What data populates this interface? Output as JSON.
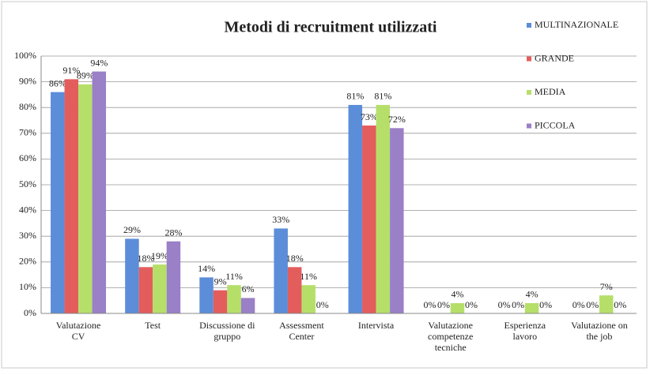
{
  "chart_data": {
    "type": "bar",
    "title": "Metodi di recruitment utilizzati",
    "categories": [
      "Valutazione\nCV",
      "Test",
      "Discussione di\ngruppo",
      "Assessment\nCenter",
      "Intervista",
      "Valutazione\ncompetenze\ntecniche",
      "Esperienza\nlavoro",
      "Valutazione on\nthe job"
    ],
    "series": [
      {
        "name": "MULTINAZIONALE",
        "color": "#5b8dd9",
        "values": [
          86,
          29,
          14,
          33,
          81,
          0,
          0,
          0
        ],
        "value_labels": [
          "86%",
          "29%",
          "14%",
          "33%",
          "81%",
          "0%",
          "0%",
          "0%"
        ]
      },
      {
        "name": "GRANDE",
        "color": "#e35d5d",
        "values": [
          91,
          18,
          9,
          18,
          73,
          0,
          0,
          0
        ],
        "value_labels": [
          "91%",
          "18%",
          "9%",
          "18%",
          "73%",
          "0%",
          "0%",
          "0%"
        ]
      },
      {
        "name": "MEDIA",
        "color": "#b6df6a",
        "values": [
          89,
          19,
          11,
          11,
          81,
          4,
          4,
          7
        ],
        "value_labels": [
          "89%",
          "19%",
          "11%",
          "11%",
          "81%",
          "4%",
          "4%",
          "7%"
        ]
      },
      {
        "name": "PICCOLA",
        "color": "#9a80c6",
        "values": [
          94,
          28,
          6,
          0,
          72,
          0,
          0,
          0
        ],
        "value_labels": [
          "94%",
          "28%",
          "6%",
          "0%",
          "72%",
          "0%",
          "0%",
          "0%"
        ]
      }
    ],
    "ylim": [
      0,
      100
    ],
    "yticks": [
      {
        "value": 0,
        "label": "0%"
      },
      {
        "value": 10,
        "label": "10%"
      },
      {
        "value": 20,
        "label": "20%"
      },
      {
        "value": 30,
        "label": "30%"
      },
      {
        "value": 40,
        "label": "40%"
      },
      {
        "value": 50,
        "label": "50%"
      },
      {
        "value": 60,
        "label": "60%"
      },
      {
        "value": 70,
        "label": "70%"
      },
      {
        "value": 80,
        "label": "80%"
      },
      {
        "value": 90,
        "label": "90%"
      },
      {
        "value": 100,
        "label": "100%"
      }
    ],
    "grid": true,
    "legend": "right"
  }
}
